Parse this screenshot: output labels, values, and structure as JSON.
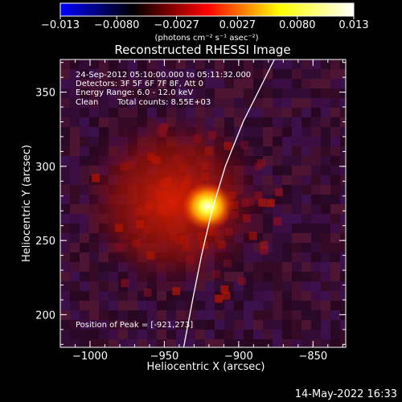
{
  "chart_data": {
    "type": "heatmap",
    "title": "Reconstructed RHESSI Image",
    "xlabel": "Heliocentric X (arcsec)",
    "ylabel": "Heliocentric Y (arcsec)",
    "xlim": [
      -1020,
      -828
    ],
    "ylim": [
      178,
      372
    ],
    "x_ticks": [
      -1000,
      -950,
      -900,
      -850
    ],
    "x_tick_labels": [
      "−1000",
      "−950",
      "−900",
      "−850"
    ],
    "y_ticks": [
      200,
      250,
      300,
      350
    ],
    "y_tick_labels": [
      "200",
      "250",
      "300",
      "350"
    ],
    "colorbar": {
      "min": -0.013,
      "max": 0.013,
      "ticks": [
        -0.013,
        -0.008,
        -0.0027,
        0.0027,
        0.008,
        0.013
      ],
      "tick_labels": [
        "−0.013",
        "−0.0080",
        "−0.0027",
        "0.0027",
        "0.0080",
        "0.013"
      ],
      "unit_label": "(photons cm⁻² s⁻¹ asec⁻²)",
      "colors": [
        "#0000ff",
        "#000000",
        "#ff0000",
        "#ffff00",
        "#ffffff"
      ]
    },
    "peak": {
      "x": -921,
      "y": 273
    },
    "limb_points": [
      [
        -937,
        178
      ],
      [
        -931,
        210
      ],
      [
        -925,
        240
      ],
      [
        -918,
        270
      ],
      [
        -909,
        300
      ],
      [
        -897,
        330
      ],
      [
        -882,
        360
      ],
      [
        -876,
        372
      ]
    ],
    "annotations": {
      "time": "24-Sep-2012 05:10:00.000 to 05:11:32.000",
      "detectors": "Detectors: 3F 5F 6F 7F 8F, Att 0",
      "energy": "Energy Range: 6.0 - 12.0 keV",
      "method": "Clean",
      "counts": "Total counts: 8.55E+03",
      "peak_text": "Position of Peak = [-921,273]"
    }
  },
  "timestamp": "14-May-2022 16:33"
}
